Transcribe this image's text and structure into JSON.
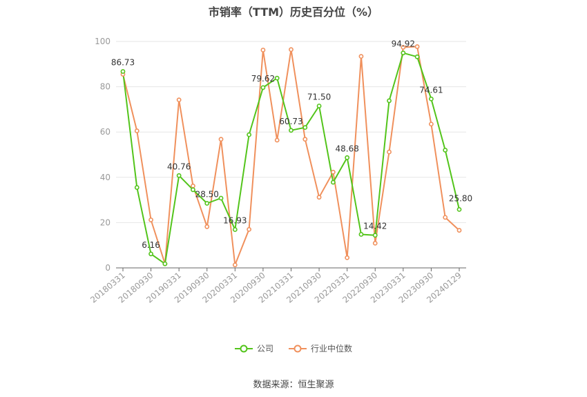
{
  "chart_data": {
    "type": "line",
    "title": "市销率（TTM）历史百分位（%）",
    "ylim": [
      0,
      100
    ],
    "yticks": [
      0,
      20,
      40,
      60,
      80,
      100
    ],
    "grid": true,
    "legend_placement": "bottom-center",
    "x_tick_labels": [
      "20180331",
      "20180930",
      "20190331",
      "20190930",
      "20200331",
      "20200930",
      "20210331",
      "20210930",
      "20220331",
      "20220930",
      "20230331",
      "20230930",
      "20240129"
    ],
    "x": [
      "20180331",
      "20180630",
      "20180930",
      "20181231",
      "20190331",
      "20190630",
      "20190930",
      "20191231",
      "20200331",
      "20200630",
      "20200930",
      "20201231",
      "20210331",
      "20210630",
      "20210930",
      "20211231",
      "20220331",
      "20220630",
      "20220930",
      "20221231",
      "20230331",
      "20230630",
      "20230930",
      "20231231",
      "20240129"
    ],
    "series": [
      {
        "name": "公司",
        "color": "#52c41a",
        "values": [
          86.73,
          35.5,
          6.16,
          1.8,
          40.76,
          34.5,
          28.5,
          30.8,
          16.93,
          58.8,
          79.62,
          83.8,
          60.73,
          62.0,
          71.5,
          37.8,
          48.68,
          14.8,
          14.42,
          73.8,
          94.92,
          93.2,
          74.61,
          52.0,
          25.8
        ],
        "labels": [
          "86.73",
          "",
          "6.16",
          "",
          "40.76",
          "",
          "28.50",
          "",
          "16.93",
          "",
          "79.62",
          "",
          "60.73",
          "",
          "71.50",
          "",
          "48.68",
          "",
          "14.42",
          "",
          "94.92",
          "",
          "74.61",
          "",
          "25.80"
        ]
      },
      {
        "name": "行业中位数",
        "color": "#f0905c",
        "values": [
          85.5,
          60.5,
          21.2,
          1.8,
          74.2,
          36.2,
          18.2,
          56.8,
          1.3,
          17.0,
          96.2,
          56.4,
          96.4,
          56.8,
          31.2,
          42.3,
          4.5,
          93.4,
          10.9,
          51.2,
          97.4,
          97.7,
          63.5,
          22.3,
          16.6
        ]
      }
    ]
  },
  "source_text": "数据来源：恒生聚源"
}
